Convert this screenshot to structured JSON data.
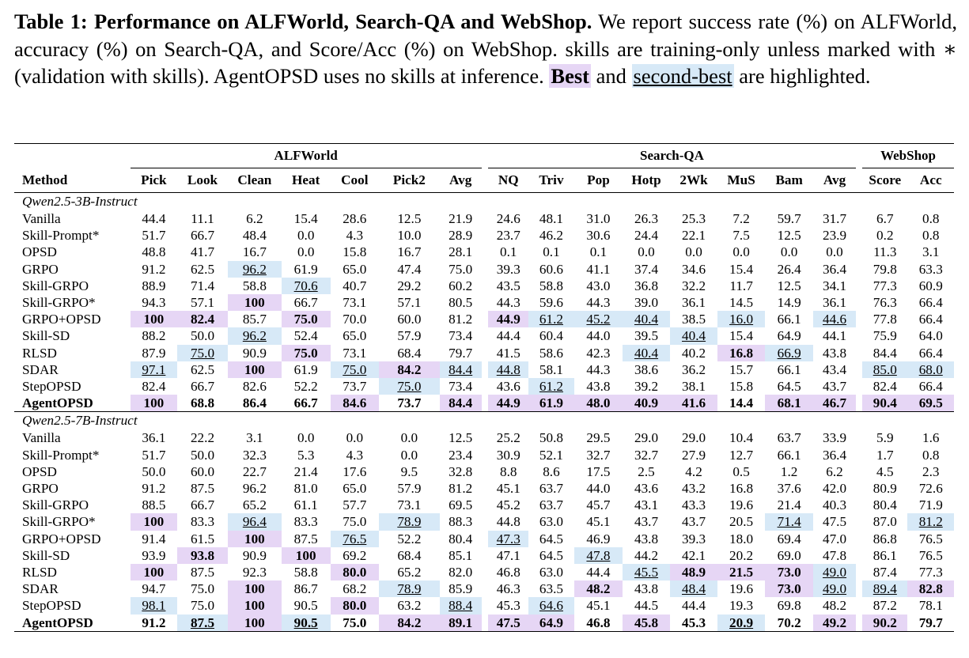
{
  "caption": {
    "label": "Table 1:",
    "title": "Performance on ALFWorld, Search-QA and WebShop.",
    "text1": " We report success rate (%) on ALFWorld, accuracy (%) on Search-QA, and Score/Acc (%) on WebShop. skills are training-only unless marked with ∗ (validation with skills). AgentOPSD uses no skills at inference. ",
    "best": "Best",
    "and": " and ",
    "second": "second-best",
    "end": " are highlighted."
  },
  "groups": [
    "ALFWorld",
    "Search-QA",
    "WebShop"
  ],
  "columns": [
    "Method",
    "Pick",
    "Look",
    "Clean",
    "Heat",
    "Cool",
    "Pick2",
    "Avg",
    "NQ",
    "Triv",
    "Pop",
    "Hotp",
    "2Wk",
    "MuS",
    "Bam",
    "Avg",
    "Score",
    "Acc"
  ],
  "highlight_colors": {
    "best": "#e6d6f5",
    "second": "#d7e9f7"
  },
  "sections": [
    {
      "title": "Qwen2.5-3B-Instruct",
      "rows": [
        {
          "method": "Vanilla",
          "values": [
            "44.4",
            "11.1",
            "6.2",
            "15.4",
            "28.6",
            "12.5",
            "21.9",
            "24.6",
            "48.1",
            "31.0",
            "26.3",
            "25.3",
            "7.2",
            "59.7",
            "31.7",
            "6.7",
            "0.8"
          ],
          "best": [],
          "second": []
        },
        {
          "method": "Skill-Prompt*",
          "values": [
            "51.7",
            "66.7",
            "48.4",
            "0.0",
            "4.3",
            "10.0",
            "28.9",
            "23.7",
            "46.2",
            "30.6",
            "24.4",
            "22.1",
            "7.5",
            "12.5",
            "23.9",
            "0.2",
            "0.8"
          ],
          "best": [],
          "second": []
        },
        {
          "method": "OPSD",
          "values": [
            "48.8",
            "41.7",
            "16.7",
            "0.0",
            "15.8",
            "16.7",
            "28.1",
            "0.1",
            "0.1",
            "0.1",
            "0.0",
            "0.0",
            "0.0",
            "0.0",
            "0.0",
            "11.3",
            "3.1"
          ],
          "best": [],
          "second": []
        },
        {
          "method": "GRPO",
          "values": [
            "91.2",
            "62.5",
            "96.2",
            "61.9",
            "65.0",
            "47.4",
            "75.0",
            "39.3",
            "60.6",
            "41.1",
            "37.4",
            "34.6",
            "15.4",
            "26.4",
            "36.4",
            "79.8",
            "63.3"
          ],
          "best": [],
          "second": [
            2
          ]
        },
        {
          "method": "Skill-GRPO",
          "values": [
            "88.9",
            "71.4",
            "58.8",
            "70.6",
            "40.7",
            "29.2",
            "60.2",
            "43.5",
            "58.8",
            "43.0",
            "36.8",
            "32.2",
            "11.7",
            "12.5",
            "34.1",
            "77.3",
            "60.9"
          ],
          "best": [],
          "second": [
            3
          ]
        },
        {
          "method": "Skill-GRPO*",
          "values": [
            "94.3",
            "57.1",
            "100",
            "66.7",
            "73.1",
            "57.1",
            "80.5",
            "44.3",
            "59.6",
            "44.3",
            "39.0",
            "36.1",
            "14.5",
            "14.9",
            "36.1",
            "76.3",
            "66.4"
          ],
          "best": [
            2
          ],
          "second": []
        },
        {
          "method": "GRPO+OPSD",
          "values": [
            "100",
            "82.4",
            "85.7",
            "75.0",
            "70.0",
            "60.0",
            "81.2",
            "44.9",
            "61.2",
            "45.2",
            "40.4",
            "38.5",
            "16.0",
            "66.1",
            "44.6",
            "77.8",
            "66.4"
          ],
          "best": [
            0,
            1,
            3,
            7
          ],
          "second": [
            8,
            9,
            10,
            12,
            14
          ]
        },
        {
          "method": "Skill-SD",
          "values": [
            "88.2",
            "50.0",
            "96.2",
            "52.4",
            "65.0",
            "57.9",
            "73.4",
            "44.4",
            "60.4",
            "44.0",
            "39.5",
            "40.4",
            "15.4",
            "64.9",
            "44.1",
            "75.9",
            "64.0"
          ],
          "best": [],
          "second": [
            2,
            11
          ]
        },
        {
          "method": "RLSD",
          "values": [
            "87.9",
            "75.0",
            "90.9",
            "75.0",
            "73.1",
            "68.4",
            "79.7",
            "41.5",
            "58.6",
            "42.3",
            "40.4",
            "40.2",
            "16.8",
            "66.9",
            "43.8",
            "84.4",
            "66.4"
          ],
          "best": [
            3,
            12
          ],
          "second": [
            1,
            10,
            13
          ]
        },
        {
          "method": "SDAR",
          "values": [
            "97.1",
            "62.5",
            "100",
            "61.9",
            "75.0",
            "84.2",
            "84.4",
            "44.8",
            "58.1",
            "44.3",
            "38.6",
            "36.2",
            "15.7",
            "66.1",
            "43.4",
            "85.0",
            "68.0"
          ],
          "best": [
            2,
            5
          ],
          "second": [
            0,
            4,
            6,
            7,
            15,
            16
          ]
        },
        {
          "method": "StepOPSD",
          "values": [
            "82.4",
            "66.7",
            "82.6",
            "52.2",
            "73.7",
            "75.0",
            "73.4",
            "43.6",
            "61.2",
            "43.8",
            "39.2",
            "38.1",
            "15.8",
            "64.5",
            "43.7",
            "82.4",
            "66.4"
          ],
          "best": [],
          "second": [
            5,
            8
          ]
        },
        {
          "method": "AgentOPSD",
          "values": [
            "100",
            "68.8",
            "86.4",
            "66.7",
            "84.6",
            "73.7",
            "84.4",
            "44.9",
            "61.9",
            "48.0",
            "40.9",
            "41.6",
            "14.4",
            "68.1",
            "46.7",
            "90.4",
            "69.5"
          ],
          "best": [
            0,
            4,
            6,
            7,
            8,
            9,
            10,
            11,
            13,
            14,
            15,
            16
          ],
          "second": [],
          "bold": true
        }
      ]
    },
    {
      "title": "Qwen2.5-7B-Instruct",
      "rows": [
        {
          "method": "Vanilla",
          "values": [
            "36.1",
            "22.2",
            "3.1",
            "0.0",
            "0.0",
            "0.0",
            "12.5",
            "25.2",
            "50.8",
            "29.5",
            "29.0",
            "29.0",
            "10.4",
            "63.7",
            "33.9",
            "5.9",
            "1.6"
          ],
          "best": [],
          "second": []
        },
        {
          "method": "Skill-Prompt*",
          "values": [
            "51.7",
            "50.0",
            "32.3",
            "5.3",
            "4.3",
            "0.0",
            "23.4",
            "30.9",
            "52.1",
            "32.7",
            "32.7",
            "27.9",
            "12.7",
            "66.1",
            "36.4",
            "1.7",
            "0.8"
          ],
          "best": [],
          "second": []
        },
        {
          "method": "OPSD",
          "values": [
            "50.0",
            "60.0",
            "22.7",
            "21.4",
            "17.6",
            "9.5",
            "32.8",
            "8.8",
            "8.6",
            "17.5",
            "2.5",
            "4.2",
            "0.5",
            "1.2",
            "6.2",
            "4.5",
            "2.3"
          ],
          "best": [],
          "second": []
        },
        {
          "method": "GRPO",
          "values": [
            "91.2",
            "87.5",
            "96.2",
            "81.0",
            "65.0",
            "57.9",
            "81.2",
            "45.1",
            "63.7",
            "44.0",
            "43.6",
            "43.2",
            "16.8",
            "37.6",
            "42.0",
            "80.9",
            "72.6"
          ],
          "best": [],
          "second": []
        },
        {
          "method": "Skill-GRPO",
          "values": [
            "88.5",
            "66.7",
            "65.2",
            "61.1",
            "57.7",
            "73.1",
            "69.5",
            "45.2",
            "63.7",
            "45.7",
            "43.1",
            "43.3",
            "19.6",
            "21.4",
            "40.3",
            "80.4",
            "71.9"
          ],
          "best": [],
          "second": []
        },
        {
          "method": "Skill-GRPO*",
          "values": [
            "100",
            "83.3",
            "96.4",
            "83.3",
            "75.0",
            "78.9",
            "88.3",
            "44.8",
            "63.0",
            "45.1",
            "43.7",
            "43.7",
            "20.5",
            "71.4",
            "47.5",
            "87.0",
            "81.2"
          ],
          "best": [
            0
          ],
          "second": [
            2,
            5,
            13,
            16
          ]
        },
        {
          "method": "GRPO+OPSD",
          "values": [
            "91.4",
            "61.5",
            "100",
            "87.5",
            "76.5",
            "52.2",
            "80.4",
            "47.3",
            "64.5",
            "46.9",
            "43.8",
            "39.3",
            "18.0",
            "69.4",
            "47.0",
            "86.8",
            "76.5"
          ],
          "best": [
            2
          ],
          "second": [
            4,
            7
          ]
        },
        {
          "method": "Skill-SD",
          "values": [
            "93.9",
            "93.8",
            "90.9",
            "100",
            "69.2",
            "68.4",
            "85.1",
            "47.1",
            "64.5",
            "47.8",
            "44.2",
            "42.1",
            "20.2",
            "69.0",
            "47.8",
            "86.1",
            "76.5"
          ],
          "best": [
            1,
            3
          ],
          "second": [
            9
          ]
        },
        {
          "method": "RLSD",
          "values": [
            "100",
            "87.5",
            "92.3",
            "58.8",
            "80.0",
            "65.2",
            "82.0",
            "46.8",
            "63.0",
            "44.4",
            "45.5",
            "48.9",
            "21.5",
            "73.0",
            "49.0",
            "87.4",
            "77.3"
          ],
          "best": [
            0,
            4,
            11,
            12,
            13
          ],
          "second": [
            10,
            14
          ]
        },
        {
          "method": "SDAR",
          "values": [
            "94.7",
            "75.0",
            "100",
            "86.7",
            "68.2",
            "78.9",
            "85.9",
            "46.3",
            "63.5",
            "48.2",
            "43.8",
            "48.4",
            "19.6",
            "73.0",
            "49.0",
            "89.4",
            "82.8"
          ],
          "best": [
            2,
            9,
            13,
            16
          ],
          "second": [
            5,
            11,
            14,
            15
          ]
        },
        {
          "method": "StepOPSD",
          "values": [
            "98.1",
            "75.0",
            "100",
            "90.5",
            "80.0",
            "63.2",
            "88.4",
            "45.3",
            "64.6",
            "45.1",
            "44.5",
            "44.4",
            "19.3",
            "69.8",
            "48.2",
            "87.2",
            "78.1"
          ],
          "best": [
            2,
            4
          ],
          "second": [
            0,
            6,
            8
          ]
        },
        {
          "method": "AgentOPSD",
          "values": [
            "91.2",
            "87.5",
            "100",
            "90.5",
            "75.0",
            "84.2",
            "89.1",
            "47.5",
            "64.9",
            "46.8",
            "45.8",
            "45.3",
            "20.9",
            "70.2",
            "49.2",
            "90.2",
            "79.7"
          ],
          "best": [
            2,
            5,
            6,
            7,
            8,
            10,
            14,
            15
          ],
          "second": [
            1,
            3,
            12
          ],
          "bold": true
        }
      ]
    }
  ]
}
